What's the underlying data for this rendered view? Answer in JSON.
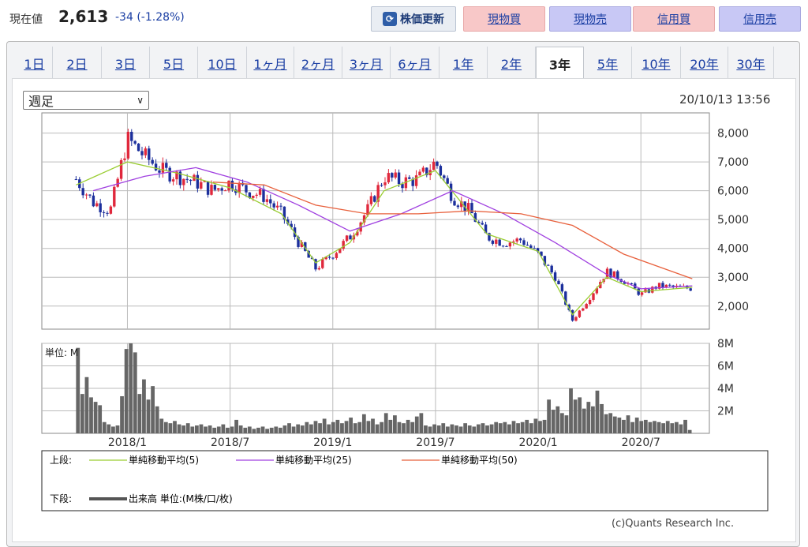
{
  "header": {
    "price_label": "現在値",
    "price_value": "2,613",
    "price_change": "-34 (-1.28%)",
    "refresh_label": "株価更新",
    "buttons": [
      "現物買",
      "現物売",
      "信用買",
      "信用売"
    ]
  },
  "tabs": [
    "1日",
    "2日",
    "3日",
    "5日",
    "10日",
    "1ヶ月",
    "2ヶ月",
    "3ヶ月",
    "6ヶ月",
    "1年",
    "2年",
    "3年",
    "5年",
    "10年",
    "20年",
    "30年"
  ],
  "active_tab": "3年",
  "period_select": "週足",
  "timestamp": "20/10/13 13:56",
  "colors": {
    "up": "#e0283c",
    "down": "#1c2f9c",
    "ma5": "#9acd32",
    "ma25": "#a040e0",
    "ma50": "#e8603c",
    "volume": "#666666",
    "link": "#1a3ea3"
  },
  "chart_data": [
    {
      "type": "candlestick",
      "title": "",
      "x": [
        "2018/1",
        "2018/7",
        "2019/1",
        "2019/7",
        "2020/1",
        "2020/7"
      ],
      "y_ticks": [
        "8,000",
        "7,000",
        "6,000",
        "5,000",
        "4,000",
        "3,000",
        "2,000"
      ],
      "ylim": [
        1200,
        8700
      ],
      "close_points": [
        [
          "2017-10",
          6400
        ],
        [
          "2017-11",
          5600
        ],
        [
          "2017-12",
          5300
        ],
        [
          "2018-01",
          7800
        ],
        [
          "2018-02",
          7200
        ],
        [
          "2018-03",
          6700
        ],
        [
          "2018-04",
          6500
        ],
        [
          "2018-05",
          6300
        ],
        [
          "2018-06",
          6000
        ],
        [
          "2018-07",
          6300
        ],
        [
          "2018-08",
          6000
        ],
        [
          "2018-09",
          5800
        ],
        [
          "2018-10",
          5200
        ],
        [
          "2018-11",
          4200
        ],
        [
          "2018-12",
          3300
        ],
        [
          "2019-01",
          3800
        ],
        [
          "2019-02",
          4400
        ],
        [
          "2019-03",
          5300
        ],
        [
          "2019-04",
          6500
        ],
        [
          "2019-05",
          6300
        ],
        [
          "2019-06",
          6400
        ],
        [
          "2019-07",
          7000
        ],
        [
          "2019-08",
          5800
        ],
        [
          "2019-09",
          5300
        ],
        [
          "2019-10",
          4400
        ],
        [
          "2019-11",
          4200
        ],
        [
          "2019-12",
          4300
        ],
        [
          "2020-01",
          3800
        ],
        [
          "2020-02",
          3000
        ],
        [
          "2020-03",
          1500
        ],
        [
          "2020-04",
          2300
        ],
        [
          "2020-05",
          3200
        ],
        [
          "2020-06",
          2900
        ],
        [
          "2020-07",
          2400
        ],
        [
          "2020-08",
          2700
        ],
        [
          "2020-09",
          2650
        ],
        [
          "2020-10",
          2613
        ]
      ],
      "ma5": [
        [
          "2017-10",
          6200
        ],
        [
          "2018-01",
          7000
        ],
        [
          "2018-04",
          6600
        ],
        [
          "2018-07",
          6100
        ],
        [
          "2018-10",
          5200
        ],
        [
          "2018-12",
          3500
        ],
        [
          "2019-02",
          4200
        ],
        [
          "2019-04",
          6000
        ],
        [
          "2019-07",
          6700
        ],
        [
          "2019-10",
          4500
        ],
        [
          "2020-01",
          3900
        ],
        [
          "2020-03",
          1700
        ],
        [
          "2020-05",
          3000
        ],
        [
          "2020-07",
          2500
        ],
        [
          "2020-10",
          2650
        ]
      ],
      "ma25": [
        [
          "2017-11",
          6000
        ],
        [
          "2018-02",
          6500
        ],
        [
          "2018-05",
          6800
        ],
        [
          "2018-08",
          6300
        ],
        [
          "2018-11",
          5500
        ],
        [
          "2019-02",
          4600
        ],
        [
          "2019-05",
          5200
        ],
        [
          "2019-08",
          6000
        ],
        [
          "2019-11",
          5200
        ],
        [
          "2020-02",
          4200
        ],
        [
          "2020-05",
          3100
        ],
        [
          "2020-07",
          2600
        ],
        [
          "2020-10",
          2700
        ]
      ],
      "ma50": [
        [
          "2018-06",
          6300
        ],
        [
          "2018-09",
          6200
        ],
        [
          "2018-12",
          5500
        ],
        [
          "2019-03",
          5200
        ],
        [
          "2019-06",
          5200
        ],
        [
          "2019-09",
          5300
        ],
        [
          "2019-12",
          5200
        ],
        [
          "2020-03",
          4800
        ],
        [
          "2020-06",
          3800
        ],
        [
          "2020-10",
          2950
        ]
      ]
    },
    {
      "type": "bar",
      "title": "",
      "ylabel": "単位: M",
      "y_ticks": [
        "8M",
        "6M",
        "4M",
        "2M"
      ],
      "ylim": [
        0,
        8
      ],
      "values": [
        7.6,
        3.5,
        5.0,
        3.2,
        2.8,
        2.5,
        1.0,
        0.8,
        0.6,
        0.7,
        3.3,
        7.5,
        8.0,
        7.2,
        3.5,
        4.8,
        3.0,
        4.2,
        2.4,
        1.3,
        1.0,
        0.9,
        1.1,
        0.8,
        0.7,
        0.9,
        0.6,
        0.7,
        0.8,
        0.6,
        0.7,
        0.5,
        0.6,
        0.8,
        0.5,
        0.6,
        1.2,
        0.7,
        0.5,
        0.6,
        0.4,
        0.5,
        0.6,
        0.4,
        0.5,
        0.6,
        0.5,
        0.7,
        0.9,
        0.6,
        0.8,
        0.7,
        1.0,
        0.8,
        1.1,
        0.9,
        1.3,
        0.8,
        1.0,
        1.2,
        0.9,
        1.1,
        1.4,
        0.9,
        1.0,
        1.7,
        1.1,
        1.3,
        0.8,
        1.0,
        1.8,
        1.2,
        1.6,
        1.0,
        0.9,
        1.2,
        1.0,
        1.5,
        1.8,
        0.7,
        0.6,
        0.8,
        0.7,
        0.9,
        0.6,
        0.8,
        0.7,
        0.6,
        0.9,
        0.7,
        0.6,
        0.8,
        0.9,
        0.7,
        0.8,
        1.0,
        0.9,
        1.0,
        0.8,
        1.1,
        0.9,
        1.0,
        1.2,
        0.9,
        1.3,
        1.1,
        1.2,
        3.0,
        2.1,
        2.4,
        1.8,
        1.6,
        4.0,
        3.0,
        3.2,
        2.2,
        2.8,
        2.4,
        3.8,
        2.6,
        1.7,
        1.8,
        1.5,
        1.4,
        1.2,
        1.6,
        1.0,
        1.4,
        1.1,
        1.2,
        1.0,
        1.1,
        1.0,
        0.9,
        1.1,
        0.9,
        1.0,
        0.8,
        1.2,
        0.3
      ]
    }
  ],
  "legend": {
    "upper_label": "上段:",
    "ma5_label": "単純移動平均(5)",
    "ma25_label": "単純移動平均(25)",
    "ma50_label": "単純移動平均(50)",
    "lower_label": "下段:",
    "volume_label": "出来高 単位:(M株/口/枚)"
  },
  "credit": "(c)Quants Research Inc."
}
